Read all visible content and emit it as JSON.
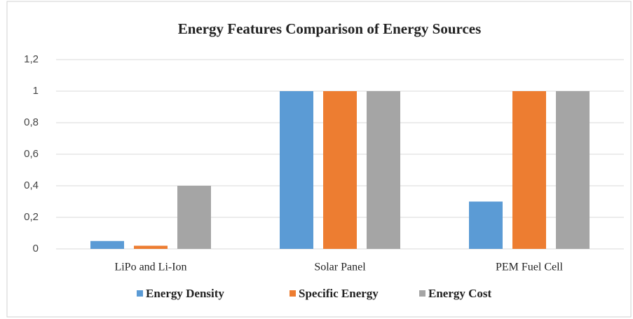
{
  "chart_data": {
    "type": "bar",
    "title": "Energy Features Comparison of Energy Sources",
    "categories": [
      "LiPo and Li-Ion",
      "Solar Panel",
      "PEM Fuel Cell"
    ],
    "series": [
      {
        "name": "Energy Density",
        "color": "#5b9bd5",
        "values": [
          0.05,
          1,
          0.3
        ]
      },
      {
        "name": "Specific Energy",
        "color": "#ed7d31",
        "values": [
          0.02,
          1,
          1
        ]
      },
      {
        "name": "Energy Cost",
        "color": "#a5a5a5",
        "values": [
          0.4,
          1,
          1
        ]
      }
    ],
    "ylim": [
      0,
      1.2
    ],
    "yticks": [
      0,
      {
        "value": 0.2,
        "label": "0,2"
      },
      {
        "value": 0.4,
        "label": "0,4"
      },
      {
        "value": 0.6,
        "label": "0,6"
      },
      {
        "value": 0.8,
        "label": "0,8"
      },
      1,
      {
        "value": 1.2,
        "label": "1,2"
      }
    ],
    "grid": true,
    "legend": "bottom"
  }
}
